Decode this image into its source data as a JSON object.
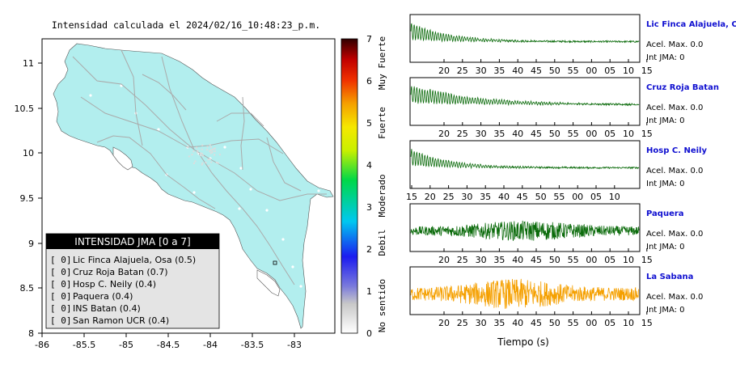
{
  "map": {
    "title": "Intensidad calculada el 2024/02/16_10:48:23_p.m.",
    "x_ticks": [
      "-86",
      "-85.5",
      "-85",
      "-84.5",
      "-84",
      "-83.5",
      "-83"
    ],
    "y_ticks": [
      "11",
      "10.5",
      "10",
      "9.5",
      "9",
      "8.5",
      "8"
    ],
    "land_color": "#b2eeee",
    "road_color": "#aaaaaa"
  },
  "legend": {
    "title": "INTENSIDAD JMA [0 a 7]",
    "items": [
      {
        "badge": "[ 0]",
        "label": "Lic Finca Alajuela, Osa (0.5)"
      },
      {
        "badge": "[ 0]",
        "label": "Cruz Roja Batan (0.7)"
      },
      {
        "badge": "[ 0]",
        "label": "Hosp C. Neily (0.4)"
      },
      {
        "badge": "[ 0]",
        "label": "Paquera (0.4)"
      },
      {
        "badge": "[ 0]",
        "label": "INS Batan (0.4)"
      },
      {
        "badge": "[ 0]",
        "label": "San Ramon UCR (0.4)"
      }
    ]
  },
  "colorbar": {
    "ticks": [
      "7",
      "6",
      "5",
      "4",
      "3",
      "2",
      "1",
      "0"
    ],
    "labels": [
      "Muy Fuerte",
      "Fuerte",
      "Moderado",
      "Debil",
      "No sentido"
    ]
  },
  "chart_data": {
    "type": "line",
    "xlabel": "Tiempo (s)",
    "series": [
      {
        "name": "Lic Finca Alajuela, Osa",
        "color": "#0b6b0b",
        "acel_label": "Acel. Max. 0.0",
        "int_label": "Int JMA: 0",
        "ticks": [
          "20",
          "25",
          "30",
          "35",
          "40",
          "45",
          "50",
          "55",
          "00",
          "05",
          "10",
          "15"
        ],
        "shape": "decay"
      },
      {
        "name": "Cruz Roja Batan",
        "color": "#0b6b0b",
        "acel_label": "Acel. Max. 0.0",
        "int_label": "Int JMA: 0",
        "ticks": [
          "20",
          "25",
          "30",
          "35",
          "40",
          "45",
          "50",
          "55",
          "00",
          "05",
          "10",
          "15"
        ],
        "shape": "decay"
      },
      {
        "name": "Hosp C. Neily",
        "color": "#0b6b0b",
        "acel_label": "Acel. Max. 0.0",
        "int_label": "Int JMA: 0",
        "ticks": [
          "15",
          "20",
          "25",
          "30",
          "35",
          "40",
          "45",
          "50",
          "55",
          "00",
          "05",
          "10"
        ],
        "shape": "decay"
      },
      {
        "name": "Paquera",
        "color": "#0b6b0b",
        "acel_label": "Acel. Max. 0.0",
        "int_label": "Int JMA: 0",
        "ticks": [
          "20",
          "25",
          "30",
          "35",
          "40",
          "45",
          "50",
          "55",
          "00",
          "05",
          "10",
          "15"
        ],
        "shape": "noise"
      },
      {
        "name": "La Sabana",
        "color": "#f5a000",
        "acel_label": "Acel. Max. 0.0",
        "int_label": "Int JMA: 0",
        "ticks": [
          "20",
          "25",
          "30",
          "35",
          "40",
          "45",
          "50",
          "55",
          "00",
          "05",
          "10",
          "15"
        ],
        "shape": "noise"
      }
    ]
  }
}
